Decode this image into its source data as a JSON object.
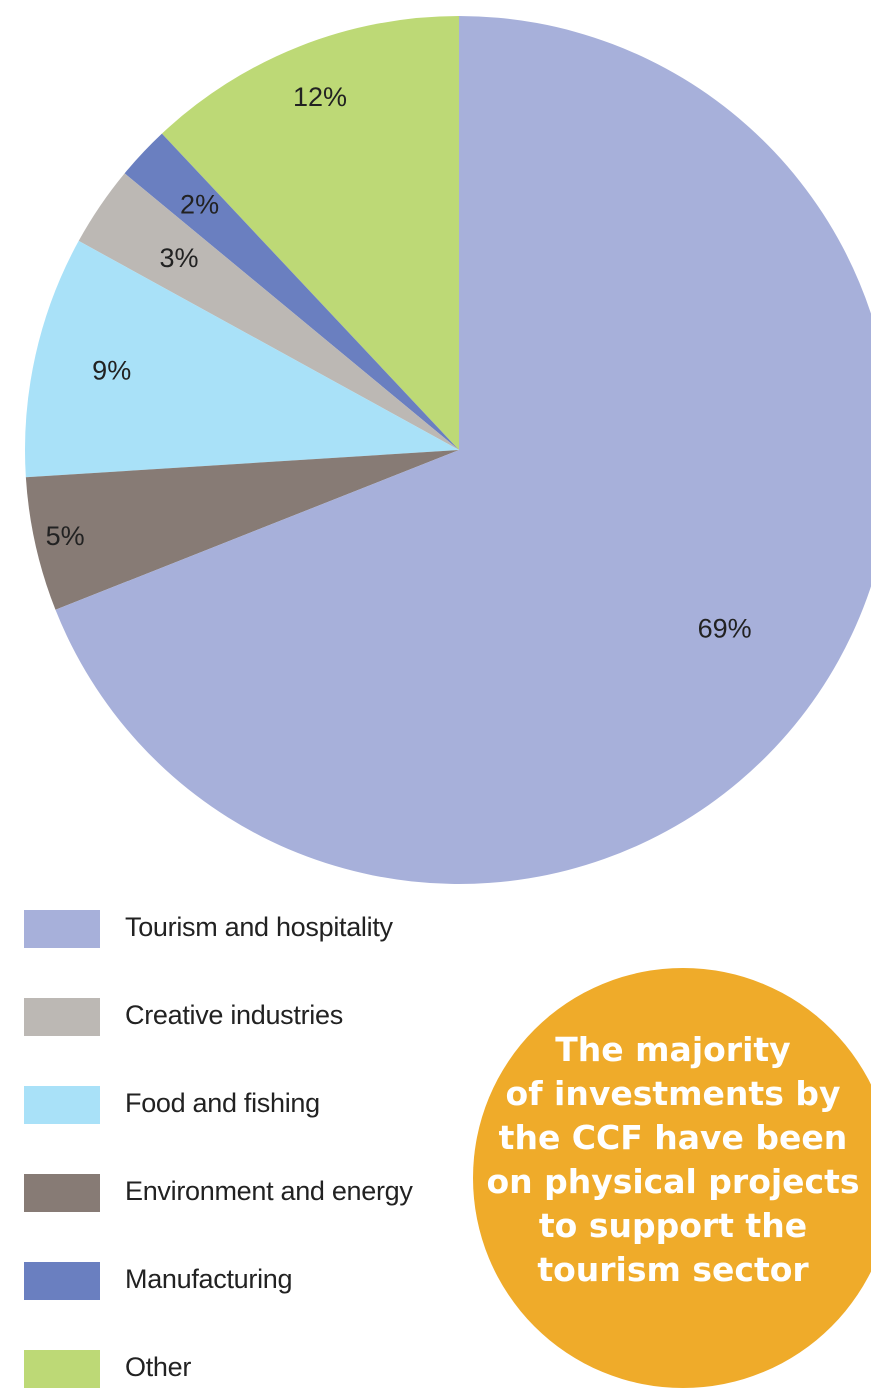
{
  "chart_data": {
    "type": "pie",
    "slices": [
      {
        "name": "Other",
        "value": 12,
        "label": "12%",
        "color": "#bdd976"
      },
      {
        "name": "Manufacturing",
        "value": 2,
        "label": "2%",
        "color": "#6a7fc0"
      },
      {
        "name": "Creative industries",
        "value": 3,
        "label": "3%",
        "color": "#bcb8b4"
      },
      {
        "name": "Food and fishing",
        "value": 9,
        "label": "9%",
        "color": "#a9e1f8"
      },
      {
        "name": "Environment and energy",
        "value": 5,
        "label": "5%",
        "color": "#877b75"
      },
      {
        "name": "Tourism and hospitality",
        "value": 69,
        "label": "69%",
        "color": "#a7b0da"
      }
    ],
    "legend": [
      {
        "label": "Tourism and hospitality",
        "color": "#a7b0da"
      },
      {
        "label": "Creative industries",
        "color": "#bcb8b4"
      },
      {
        "label": "Food and fishing",
        "color": "#a9e1f8"
      },
      {
        "label": "Environment and energy",
        "color": "#877b75"
      },
      {
        "label": "Manufacturing",
        "color": "#6a7fc0"
      },
      {
        "label": "Other",
        "color": "#bdd976"
      }
    ],
    "legend_placement": "bottom-left"
  },
  "callout": {
    "lines": [
      "The majority",
      "of investments by",
      "the CCF have been",
      "on physical projects",
      "to support the",
      "tourism sector"
    ],
    "color": "#efab2a"
  }
}
